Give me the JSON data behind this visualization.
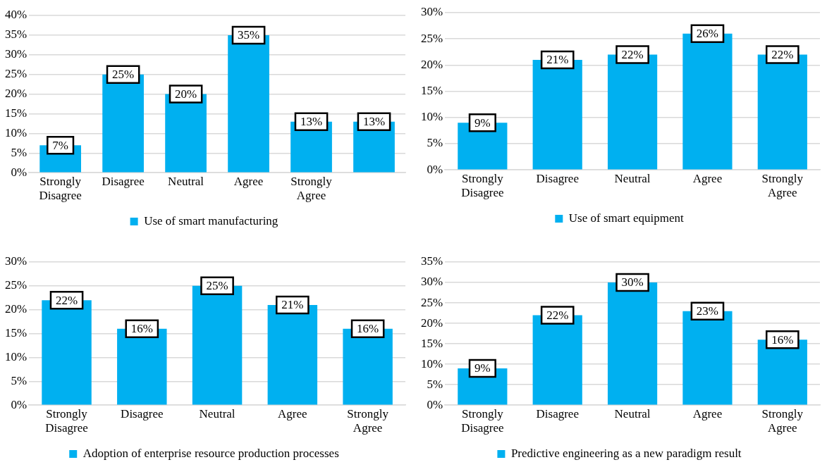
{
  "chart_data": [
    {
      "type": "bar",
      "categories": [
        "Strongly Disagree",
        "Disagree",
        "Neutral",
        "Agree",
        "Strongly Agree",
        null
      ],
      "series": [
        {
          "name": "Use of smart manufacturing",
          "color": "#00b0f0",
          "values": [
            7,
            25,
            20,
            35,
            13,
            13
          ]
        }
      ],
      "value_labels": [
        "7%",
        "25%",
        "20%",
        "35%",
        "13%",
        "13%"
      ],
      "ylim": [
        0,
        40
      ],
      "yticks": [
        {
          "value": 0,
          "label": "0%"
        },
        {
          "value": 5,
          "label": "5%"
        },
        {
          "value": 10,
          "label": "10%"
        },
        {
          "value": 15,
          "label": "15%"
        },
        {
          "value": 20,
          "label": "20%"
        },
        {
          "value": 25,
          "label": "25%"
        },
        {
          "value": 30,
          "label": "30%"
        },
        {
          "value": 35,
          "label": "35%"
        },
        {
          "value": 40,
          "label": "40%"
        }
      ],
      "grid": "y",
      "legend": "bottom"
    },
    {
      "type": "bar",
      "categories": [
        "Strongly Disagree",
        "Disagree",
        "Neutral",
        "Agree",
        "Strongly Agree"
      ],
      "series": [
        {
          "name": "Use of smart equipment",
          "color": "#00b0f0",
          "values": [
            9,
            21,
            22,
            26,
            22
          ]
        }
      ],
      "value_labels": [
        "9%",
        "21%",
        "22%",
        "26%",
        "22%"
      ],
      "ylim": [
        0,
        30
      ],
      "yticks": [
        {
          "value": 0,
          "label": "0%"
        },
        {
          "value": 5,
          "label": "5%"
        },
        {
          "value": 10,
          "label": "10%"
        },
        {
          "value": 15,
          "label": "15%"
        },
        {
          "value": 20,
          "label": "20%"
        },
        {
          "value": 25,
          "label": "25%"
        },
        {
          "value": 30,
          "label": "30%"
        }
      ],
      "grid": "y",
      "legend": "bottom"
    },
    {
      "type": "bar",
      "categories": [
        "Strongly Disagree",
        "Disagree",
        "Neutral",
        "Agree",
        "Strongly Agree"
      ],
      "series": [
        {
          "name": "Adoption of enterprise resource production processes",
          "color": "#00b0f0",
          "values": [
            22,
            16,
            25,
            21,
            16
          ]
        }
      ],
      "value_labels": [
        "22%",
        "16%",
        "25%",
        "21%",
        "16%"
      ],
      "ylim": [
        0,
        30
      ],
      "yticks": [
        {
          "value": 0,
          "label": "0%"
        },
        {
          "value": 5,
          "label": "5%"
        },
        {
          "value": 10,
          "label": "10%"
        },
        {
          "value": 15,
          "label": "15%"
        },
        {
          "value": 20,
          "label": "20%"
        },
        {
          "value": 25,
          "label": "25%"
        },
        {
          "value": 30,
          "label": "30%"
        }
      ],
      "grid": "y",
      "legend": "bottom"
    },
    {
      "type": "bar",
      "categories": [
        "Strongly Disagree",
        "Disagree",
        "Neutral",
        "Agree",
        "Strongly Agree"
      ],
      "series": [
        {
          "name": "Predictive engineering as a new paradigm result",
          "color": "#00b0f0",
          "values": [
            9,
            22,
            30,
            23,
            16
          ]
        }
      ],
      "value_labels": [
        "9%",
        "22%",
        "30%",
        "23%",
        "16%"
      ],
      "ylim": [
        0,
        35
      ],
      "yticks": [
        {
          "value": 0,
          "label": "0%"
        },
        {
          "value": 5,
          "label": "5%"
        },
        {
          "value": 10,
          "label": "10%"
        },
        {
          "value": 15,
          "label": "15%"
        },
        {
          "value": 20,
          "label": "20%"
        },
        {
          "value": 25,
          "label": "25%"
        },
        {
          "value": 30,
          "label": "30%"
        },
        {
          "value": 35,
          "label": "35%"
        }
      ],
      "grid": "y",
      "legend": "bottom"
    }
  ]
}
